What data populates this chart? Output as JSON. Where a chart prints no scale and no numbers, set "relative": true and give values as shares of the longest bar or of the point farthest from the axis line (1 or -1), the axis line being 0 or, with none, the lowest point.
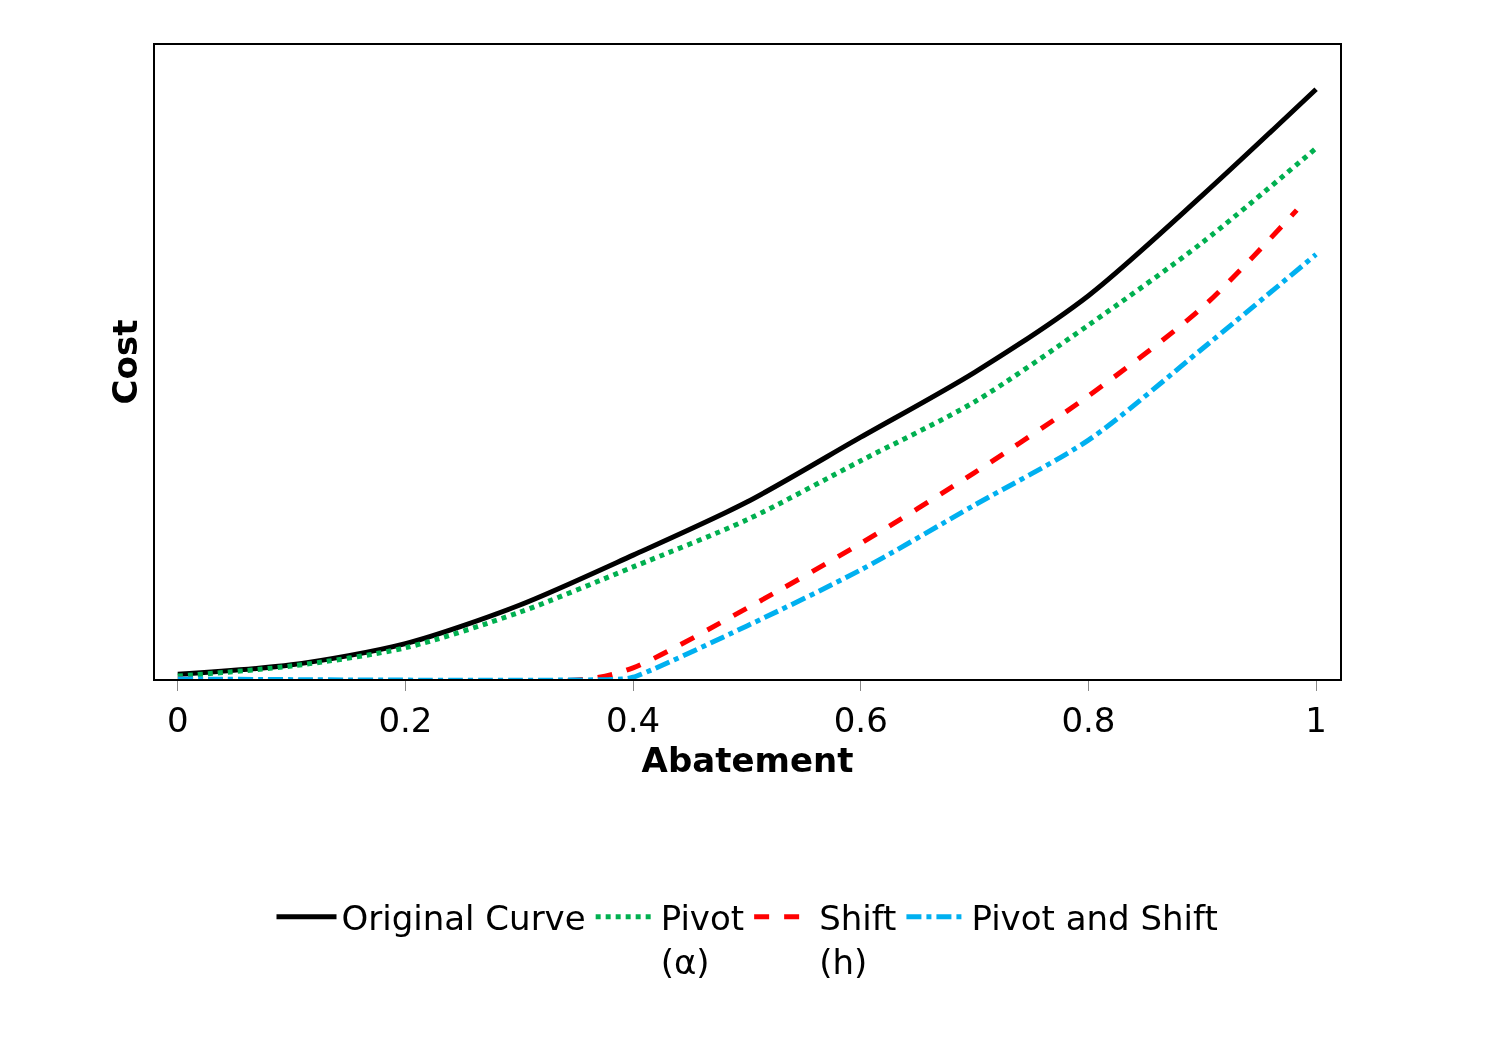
{
  "chart_data": {
    "type": "line",
    "xlabel": "Abatement",
    "ylabel": "Cost",
    "relative": true,
    "xlim": [
      -0.02,
      1.021
    ],
    "xticks": [
      0,
      0.2,
      0.4,
      0.6,
      0.8,
      1
    ],
    "legend": "bottom",
    "marker": "none",
    "series": [
      {
        "name": "Original Curve",
        "color": "#000000",
        "line_style": "solid",
        "x": [
          0,
          0.1,
          0.2,
          0.3,
          0.4,
          0.5,
          0.6,
          0.7,
          0.8,
          0.9,
          1
        ],
        "values": [
          0.008,
          0.024,
          0.06,
          0.125,
          0.21,
          0.3,
          0.41,
          0.52,
          0.65,
          0.82,
          1.0
        ]
      },
      {
        "name": "Pivot\n(α)",
        "color": "#00b050",
        "line_style": "dotted",
        "x": [
          0,
          0.1,
          0.2,
          0.3,
          0.4,
          0.5,
          0.6,
          0.7,
          0.8,
          0.9,
          1
        ],
        "values": [
          0.005,
          0.022,
          0.053,
          0.113,
          0.19,
          0.27,
          0.37,
          0.47,
          0.6,
          0.74,
          0.9
        ]
      },
      {
        "name": "Shift\n(h)",
        "color": "#ff0000",
        "line_style": "dashed",
        "x": [
          0,
          0.36,
          0.4,
          0.5,
          0.6,
          0.7,
          0.8,
          0.9,
          0.983
        ],
        "values": [
          0,
          0,
          0.019,
          0.12,
          0.23,
          0.35,
          0.48,
          0.63,
          0.795
        ]
      },
      {
        "name": "Pivot and Shift",
        "color": "#00b0f0",
        "line_style": "dashdot",
        "x": [
          0,
          0.39,
          0.4,
          0.5,
          0.6,
          0.7,
          0.8,
          0.9,
          1
        ],
        "values": [
          0,
          0,
          0.003,
          0.09,
          0.185,
          0.295,
          0.405,
          0.56,
          0.72
        ]
      }
    ]
  }
}
